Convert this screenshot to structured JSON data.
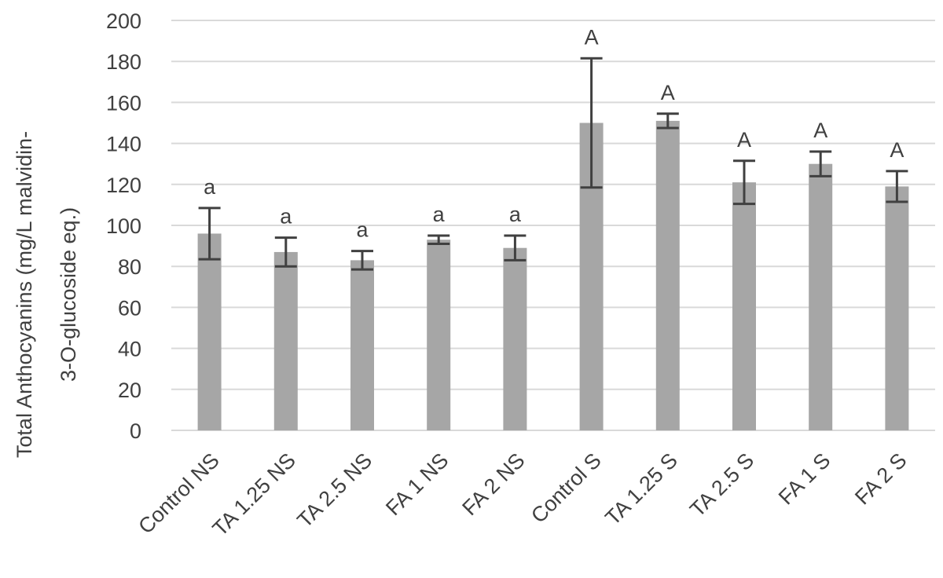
{
  "chart_data": {
    "type": "bar",
    "title": "",
    "xlabel": "",
    "ylabel_lines": [
      "Total Anthocyanins (mg/L malvidin-",
      "3-O-glucoside eq.)"
    ],
    "ylim": [
      0,
      200
    ],
    "yticks": [
      0,
      20,
      40,
      60,
      80,
      100,
      120,
      140,
      160,
      180,
      200
    ],
    "grid": true,
    "categories": [
      "Control NS",
      "TA 1.25 NS",
      "TA 2.5 NS",
      "FA 1 NS",
      "FA 2 NS",
      "Control S",
      "TA 1.25 S",
      "TA 2.5 S",
      "FA 1 S",
      "FA 2 S"
    ],
    "values": [
      96,
      87,
      83,
      93,
      89,
      150,
      151,
      121,
      130,
      119
    ],
    "errors": [
      12.5,
      7,
      4.5,
      2,
      6,
      31.5,
      3.5,
      10.5,
      6,
      7.5
    ],
    "significance_letters": [
      "a",
      "a",
      "a",
      "a",
      "a",
      "A",
      "A",
      "A",
      "A",
      "A"
    ],
    "colors": {
      "bar": "#a6a6a6",
      "error_bar": "#404040",
      "grid": "#d9d9d9",
      "text": "#404040"
    }
  }
}
